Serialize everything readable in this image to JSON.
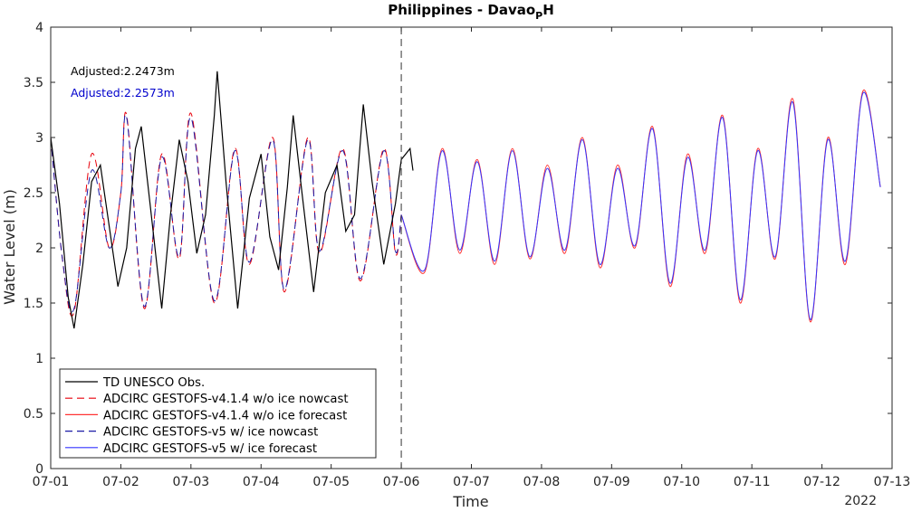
{
  "chart_data": {
    "type": "line",
    "title": {
      "main": "Philippines - Davao",
      "subscript": "P",
      "suffix": "H"
    },
    "xlabel": "Time",
    "ylabel": "Water Level (m)",
    "year_label": "2022",
    "xlim": [
      "2022-07-01",
      "2022-07-13"
    ],
    "ylim": [
      0,
      4
    ],
    "x_ticks": [
      {
        "date": "2022-07-01",
        "label": "07-01"
      },
      {
        "date": "2022-07-02",
        "label": "07-02"
      },
      {
        "date": "2022-07-03",
        "label": "07-03"
      },
      {
        "date": "2022-07-04",
        "label": "07-04"
      },
      {
        "date": "2022-07-05",
        "label": "07-05"
      },
      {
        "date": "2022-07-06",
        "label": "07-06"
      },
      {
        "date": "2022-07-07",
        "label": "07-07"
      },
      {
        "date": "2022-07-08",
        "label": "07-08"
      },
      {
        "date": "2022-07-09",
        "label": "07-09"
      },
      {
        "date": "2022-07-10",
        "label": "07-10"
      },
      {
        "date": "2022-07-11",
        "label": "07-11"
      },
      {
        "date": "2022-07-12",
        "label": "07-12"
      },
      {
        "date": "2022-07-13",
        "label": "07-13"
      }
    ],
    "y_ticks": [
      {
        "value": 0,
        "label": "0"
      },
      {
        "value": 0.5,
        "label": "0.5"
      },
      {
        "value": 1,
        "label": "1"
      },
      {
        "value": 1.5,
        "label": "1.5"
      },
      {
        "value": 2,
        "label": "2"
      },
      {
        "value": 2.5,
        "label": "2.5"
      },
      {
        "value": 3,
        "label": "3"
      },
      {
        "value": 3.5,
        "label": "3.5"
      },
      {
        "value": 4,
        "label": "4"
      }
    ],
    "nowcast_forecast_divider": "2022-07-06 00:00",
    "annotations": [
      {
        "text": "Adjusted:2.2473m",
        "color": "#000000"
      },
      {
        "text": "Adjusted:2.2573m",
        "color": "#0000cc"
      }
    ],
    "legend_position": "bottom-left",
    "series": [
      {
        "name": "TD UNESCO Obs.",
        "color": "#000000",
        "style": "solid",
        "points": [
          [
            "2022-07-01 00:00",
            3.0
          ],
          [
            "2022-07-01 03:00",
            2.4
          ],
          [
            "2022-07-01 06:00",
            1.55
          ],
          [
            "2022-07-01 08:00",
            1.27
          ],
          [
            "2022-07-01 11:00",
            1.85
          ],
          [
            "2022-07-01 14:00",
            2.6
          ],
          [
            "2022-07-01 17:00",
            2.75
          ],
          [
            "2022-07-01 20:00",
            2.2
          ],
          [
            "2022-07-01 23:00",
            1.65
          ],
          [
            "2022-07-02 02:00",
            2.0
          ],
          [
            "2022-07-02 05:00",
            2.9
          ],
          [
            "2022-07-02 07:00",
            3.1
          ],
          [
            "2022-07-02 10:00",
            2.4
          ],
          [
            "2022-07-02 14:00",
            1.45
          ],
          [
            "2022-07-02 17:00",
            2.3
          ],
          [
            "2022-07-02 20:00",
            2.98
          ],
          [
            "2022-07-02 23:00",
            2.6
          ],
          [
            "2022-07-03 02:00",
            1.95
          ],
          [
            "2022-07-03 05:00",
            2.3
          ],
          [
            "2022-07-03 08:00",
            3.2
          ],
          [
            "2022-07-03 09:00",
            3.6
          ],
          [
            "2022-07-03 12:00",
            2.6
          ],
          [
            "2022-07-03 16:00",
            1.45
          ],
          [
            "2022-07-03 20:00",
            2.45
          ],
          [
            "2022-07-04 00:00",
            2.85
          ],
          [
            "2022-07-04 03:00",
            2.1
          ],
          [
            "2022-07-04 06:00",
            1.8
          ],
          [
            "2022-07-04 09:00",
            2.55
          ],
          [
            "2022-07-04 11:00",
            3.2
          ],
          [
            "2022-07-04 14:00",
            2.5
          ],
          [
            "2022-07-04 18:00",
            1.6
          ],
          [
            "2022-07-04 22:00",
            2.5
          ],
          [
            "2022-07-05 02:00",
            2.75
          ],
          [
            "2022-07-05 05:00",
            2.15
          ],
          [
            "2022-07-05 08:00",
            2.3
          ],
          [
            "2022-07-05 11:00",
            3.3
          ],
          [
            "2022-07-05 14:00",
            2.6
          ],
          [
            "2022-07-05 18:00",
            1.85
          ],
          [
            "2022-07-05 22:00",
            2.4
          ],
          [
            "2022-07-06 00:00",
            2.8
          ],
          [
            "2022-07-06 03:00",
            2.9
          ],
          [
            "2022-07-06 04:00",
            2.7
          ]
        ]
      },
      {
        "name": "ADCIRC GESTOFS-v4.1.4 w/o ice nowcast",
        "color": "#e8000b",
        "style": "dashed",
        "points": [
          [
            "2022-07-01 00:00",
            3.0
          ],
          [
            "2022-07-01 04:00",
            1.9
          ],
          [
            "2022-07-01 08:00",
            1.42
          ],
          [
            "2022-07-01 14:00",
            2.85
          ],
          [
            "2022-07-01 20:00",
            2.0
          ],
          [
            "2022-07-02 00:00",
            2.5
          ],
          [
            "2022-07-02 02:00",
            3.2
          ],
          [
            "2022-07-02 08:00",
            1.45
          ],
          [
            "2022-07-02 14:00",
            2.85
          ],
          [
            "2022-07-02 20:00",
            1.9
          ],
          [
            "2022-07-03 00:00",
            3.22
          ],
          [
            "2022-07-03 08:00",
            1.5
          ],
          [
            "2022-07-03 15:00",
            2.9
          ],
          [
            "2022-07-03 20:00",
            1.85
          ],
          [
            "2022-07-04 04:00",
            3.0
          ],
          [
            "2022-07-04 08:00",
            1.6
          ],
          [
            "2022-07-04 16:00",
            3.0
          ],
          [
            "2022-07-04 20:00",
            1.95
          ],
          [
            "2022-07-05 04:00",
            2.9
          ],
          [
            "2022-07-05 10:00",
            1.7
          ],
          [
            "2022-07-05 18:00",
            2.9
          ],
          [
            "2022-07-05 22:00",
            1.95
          ],
          [
            "2022-07-06 00:00",
            2.3
          ]
        ]
      },
      {
        "name": "ADCIRC GESTOFS-v4.1.4 w/o ice forecast",
        "color": "#ff3333",
        "style": "solid",
        "points": [
          [
            "2022-07-06 00:00",
            2.3
          ],
          [
            "2022-07-06 08:00",
            1.78
          ],
          [
            "2022-07-06 14:00",
            2.9
          ],
          [
            "2022-07-06 20:00",
            1.95
          ],
          [
            "2022-07-07 02:00",
            2.8
          ],
          [
            "2022-07-07 08:00",
            1.85
          ],
          [
            "2022-07-07 14:00",
            2.9
          ],
          [
            "2022-07-07 20:00",
            1.9
          ],
          [
            "2022-07-08 02:00",
            2.75
          ],
          [
            "2022-07-08 08:00",
            1.95
          ],
          [
            "2022-07-08 14:00",
            3.0
          ],
          [
            "2022-07-08 20:00",
            1.82
          ],
          [
            "2022-07-09 02:00",
            2.75
          ],
          [
            "2022-07-09 08:00",
            2.0
          ],
          [
            "2022-07-09 14:00",
            3.1
          ],
          [
            "2022-07-09 20:00",
            1.65
          ],
          [
            "2022-07-10 02:00",
            2.85
          ],
          [
            "2022-07-10 08:00",
            1.95
          ],
          [
            "2022-07-10 14:00",
            3.2
          ],
          [
            "2022-07-10 20:00",
            1.5
          ],
          [
            "2022-07-11 02:00",
            2.9
          ],
          [
            "2022-07-11 08:00",
            1.9
          ],
          [
            "2022-07-11 14:00",
            3.35
          ],
          [
            "2022-07-11 20:00",
            1.33
          ],
          [
            "2022-07-12 02:00",
            3.0
          ],
          [
            "2022-07-12 08:00",
            1.85
          ],
          [
            "2022-07-12 14:00",
            3.42
          ],
          [
            "2022-07-12 20:00",
            2.55
          ]
        ]
      },
      {
        "name": "ADCIRC GESTOFS-v5 w/ ice nowcast",
        "color": "#1a1aa6",
        "style": "dashed",
        "points": [
          [
            "2022-07-01 00:00",
            3.0
          ],
          [
            "2022-07-01 04:00",
            1.9
          ],
          [
            "2022-07-01 08:00",
            1.45
          ],
          [
            "2022-07-01 14:00",
            2.7
          ],
          [
            "2022-07-01 20:00",
            2.0
          ],
          [
            "2022-07-02 00:00",
            2.5
          ],
          [
            "2022-07-02 02:00",
            3.18
          ],
          [
            "2022-07-02 08:00",
            1.47
          ],
          [
            "2022-07-02 14:00",
            2.82
          ],
          [
            "2022-07-02 20:00",
            1.92
          ],
          [
            "2022-07-03 00:00",
            3.18
          ],
          [
            "2022-07-03 08:00",
            1.52
          ],
          [
            "2022-07-03 15:00",
            2.88
          ],
          [
            "2022-07-03 20:00",
            1.87
          ],
          [
            "2022-07-04 04:00",
            2.98
          ],
          [
            "2022-07-04 08:00",
            1.62
          ],
          [
            "2022-07-04 16:00",
            2.98
          ],
          [
            "2022-07-04 20:00",
            1.97
          ],
          [
            "2022-07-05 04:00",
            2.88
          ],
          [
            "2022-07-05 10:00",
            1.72
          ],
          [
            "2022-07-05 18:00",
            2.88
          ],
          [
            "2022-07-05 22:00",
            1.97
          ],
          [
            "2022-07-06 00:00",
            2.3
          ]
        ]
      },
      {
        "name": "ADCIRC GESTOFS-v5 w/ ice forecast",
        "color": "#3333ff",
        "style": "solid",
        "points": [
          [
            "2022-07-06 00:00",
            2.3
          ],
          [
            "2022-07-06 08:00",
            1.8
          ],
          [
            "2022-07-06 14:00",
            2.88
          ],
          [
            "2022-07-06 20:00",
            1.98
          ],
          [
            "2022-07-07 02:00",
            2.78
          ],
          [
            "2022-07-07 08:00",
            1.88
          ],
          [
            "2022-07-07 14:00",
            2.88
          ],
          [
            "2022-07-07 20:00",
            1.92
          ],
          [
            "2022-07-08 02:00",
            2.72
          ],
          [
            "2022-07-08 08:00",
            1.98
          ],
          [
            "2022-07-08 14:00",
            2.98
          ],
          [
            "2022-07-08 20:00",
            1.85
          ],
          [
            "2022-07-09 02:00",
            2.72
          ],
          [
            "2022-07-09 08:00",
            2.02
          ],
          [
            "2022-07-09 14:00",
            3.08
          ],
          [
            "2022-07-09 20:00",
            1.68
          ],
          [
            "2022-07-10 02:00",
            2.82
          ],
          [
            "2022-07-10 08:00",
            1.98
          ],
          [
            "2022-07-10 14:00",
            3.18
          ],
          [
            "2022-07-10 20:00",
            1.53
          ],
          [
            "2022-07-11 02:00",
            2.88
          ],
          [
            "2022-07-11 08:00",
            1.92
          ],
          [
            "2022-07-11 14:00",
            3.32
          ],
          [
            "2022-07-11 20:00",
            1.35
          ],
          [
            "2022-07-12 02:00",
            2.98
          ],
          [
            "2022-07-12 08:00",
            1.88
          ],
          [
            "2022-07-12 14:00",
            3.4
          ],
          [
            "2022-07-12 20:00",
            2.55
          ]
        ]
      }
    ]
  }
}
